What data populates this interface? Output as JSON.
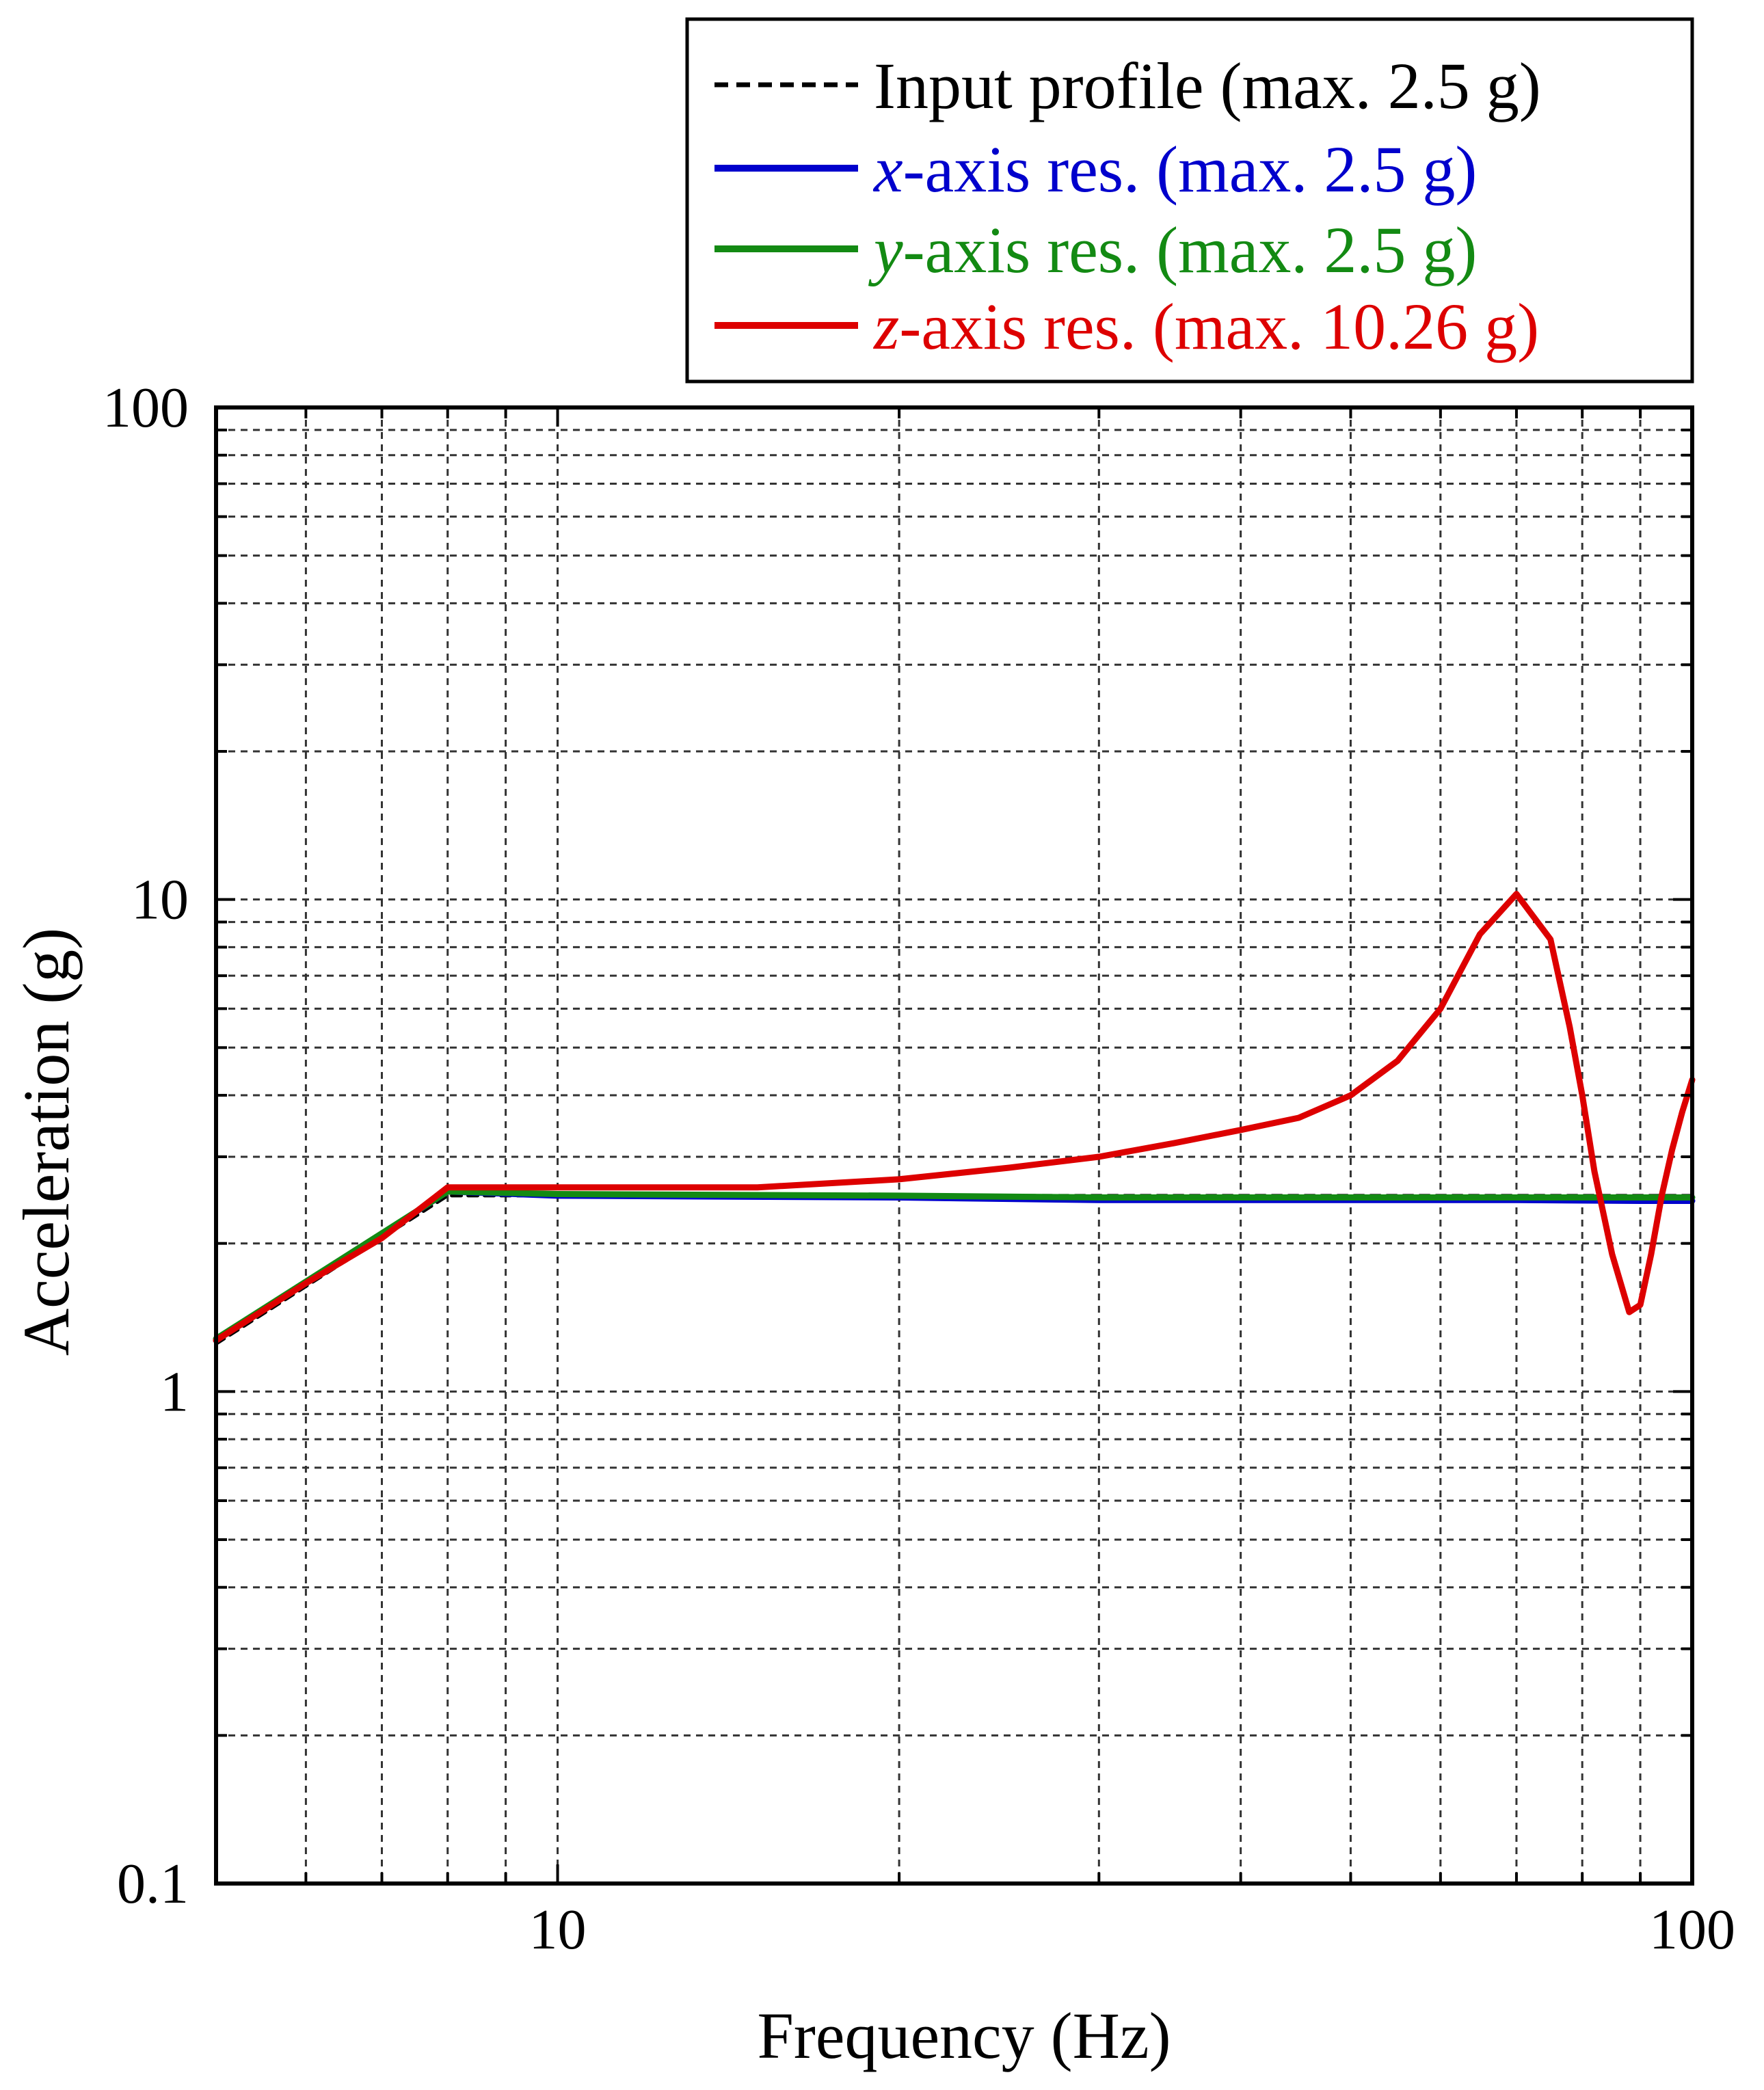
{
  "chart_data": {
    "type": "line",
    "title": "",
    "xlabel": "Frequency (Hz)",
    "ylabel": "Acceleration (g)",
    "xscale": "log",
    "yscale": "log",
    "xlim": [
      5,
      100
    ],
    "ylim": [
      0.1,
      100
    ],
    "xticks": [
      10,
      100
    ],
    "xtick_labels": [
      "10",
      "100"
    ],
    "yticks": [
      0.1,
      1,
      10,
      100
    ],
    "ytick_labels": [
      "0.1",
      "1",
      "10",
      "100"
    ],
    "grid": true,
    "legend_position": "top-right",
    "series": [
      {
        "name_prefix": "",
        "name_suffix": "Input profile (max. 2.5 g)",
        "style": "dashed",
        "color": "#000000",
        "x": [
          5,
          8,
          100
        ],
        "y": [
          1.25,
          2.5,
          2.5
        ]
      },
      {
        "name_prefix": "x",
        "name_suffix": "-axis res. (max. 2.5 g)",
        "style": "solid",
        "color": "#0000cc",
        "x": [
          5,
          8,
          10,
          20,
          30,
          50,
          70,
          90,
          100
        ],
        "y": [
          1.27,
          2.55,
          2.5,
          2.48,
          2.45,
          2.45,
          2.45,
          2.44,
          2.44
        ]
      },
      {
        "name_prefix": "y",
        "name_suffix": "-axis res. (max. 2.5 g)",
        "style": "solid",
        "color": "#138a13",
        "x": [
          5,
          8,
          10,
          20,
          30,
          50,
          70,
          90,
          100
        ],
        "y": [
          1.28,
          2.55,
          2.52,
          2.5,
          2.48,
          2.48,
          2.48,
          2.48,
          2.48
        ]
      },
      {
        "name_prefix": "z",
        "name_suffix": "-axis res. (max. 10.26 g)",
        "style": "solid",
        "color": "#dd0000",
        "x": [
          5,
          6,
          7,
          8,
          10,
          15,
          20,
          25,
          30,
          35,
          40,
          45,
          50,
          55,
          60,
          65,
          70,
          75,
          78,
          80,
          82,
          85,
          88,
          90,
          92,
          94,
          96,
          98,
          100
        ],
        "y": [
          1.27,
          1.66,
          2.05,
          2.6,
          2.6,
          2.6,
          2.7,
          2.85,
          3.0,
          3.2,
          3.4,
          3.6,
          4.0,
          4.7,
          6.0,
          8.5,
          10.26,
          8.3,
          5.5,
          4.0,
          2.8,
          1.9,
          1.45,
          1.5,
          1.9,
          2.5,
          3.1,
          3.7,
          4.3
        ]
      }
    ]
  }
}
